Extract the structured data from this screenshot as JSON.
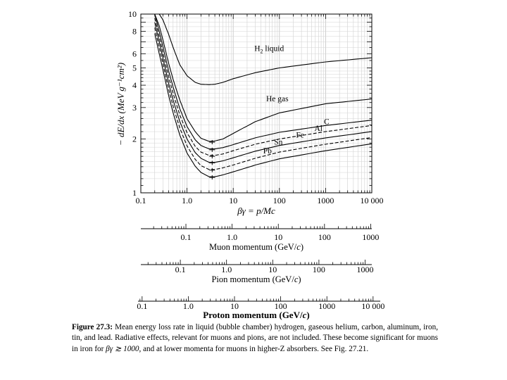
{
  "chart_data": {
    "type": "line",
    "title": "Mean energy loss rate",
    "xlabel": "βγ = p/Mc",
    "ylabel": "− dE/dx (MeV g⁻¹cm²)",
    "xscale": "log",
    "yscale": "log",
    "xlim": [
      0.1,
      10000
    ],
    "ylim": [
      1,
      10
    ],
    "grid": true,
    "xticks": [
      0.1,
      1.0,
      10,
      100,
      1000,
      10000
    ],
    "x_tick_labels": [
      "0.1",
      "1.0",
      "10",
      "100",
      "1000",
      "10 000"
    ],
    "y_tick_labels": [
      {
        "value": 1,
        "label": "1"
      },
      {
        "value": 2,
        "label": "2"
      },
      {
        "value": 3,
        "label": "3"
      },
      {
        "value": 4,
        "label": "4"
      },
      {
        "value": 5,
        "label": "5"
      },
      {
        "value": 6,
        "label": "6"
      },
      {
        "value": 8,
        "label": "8"
      },
      {
        "value": 10,
        "label": "10"
      }
    ],
    "series": [
      {
        "name": "H2 liquid",
        "label_main": "H",
        "label_sub": "2",
        "label_rest": " liquid",
        "label_at": {
          "x": 60,
          "y": 6.2
        },
        "dash": "solid",
        "x": [
          0.25,
          0.3,
          0.4,
          0.5,
          0.7,
          1.0,
          1.5,
          2,
          3,
          4,
          6,
          10,
          30,
          100,
          1000,
          10000
        ],
        "y": [
          10.0,
          9.3,
          7.7,
          6.5,
          5.2,
          4.52,
          4.15,
          4.05,
          4.03,
          4.05,
          4.15,
          4.35,
          4.7,
          5.0,
          5.4,
          5.7
        ]
      },
      {
        "name": "He gas",
        "label_at": {
          "x": 90,
          "y": 3.25
        },
        "dash": "solid",
        "x": [
          0.2,
          0.25,
          0.3,
          0.4,
          0.5,
          0.7,
          1.0,
          1.5,
          2,
          3,
          4,
          6,
          10,
          30,
          100,
          1000,
          10000
        ],
        "y": [
          10.0,
          8.6,
          7.2,
          5.3,
          4.3,
          3.3,
          2.6,
          2.2,
          2.02,
          1.94,
          1.95,
          2.0,
          2.15,
          2.5,
          2.8,
          3.15,
          3.35
        ]
      },
      {
        "name": "C",
        "label_at": {
          "x": 1050,
          "y": 2.42
        },
        "dash": "solid",
        "x": [
          0.2,
          0.25,
          0.3,
          0.4,
          0.5,
          0.7,
          1.0,
          1.5,
          2,
          3,
          4,
          6,
          10,
          30,
          100,
          1000,
          10000
        ],
        "y": [
          10.0,
          8.0,
          6.6,
          4.8,
          3.9,
          2.95,
          2.35,
          1.98,
          1.84,
          1.76,
          1.76,
          1.79,
          1.86,
          2.03,
          2.18,
          2.38,
          2.55
        ]
      },
      {
        "name": "Al",
        "label_at": {
          "x": 700,
          "y": 2.22
        },
        "dash": "dashed",
        "x": [
          0.2,
          0.25,
          0.3,
          0.4,
          0.5,
          0.7,
          1.0,
          1.5,
          2,
          3,
          4,
          6,
          10,
          30,
          100,
          1000,
          10000
        ],
        "y": [
          9.5,
          7.5,
          6.1,
          4.45,
          3.6,
          2.72,
          2.17,
          1.82,
          1.69,
          1.62,
          1.62,
          1.65,
          1.72,
          1.87,
          2.0,
          2.2,
          2.38
        ]
      },
      {
        "name": "Fe",
        "label_at": {
          "x": 280,
          "y": 2.04
        },
        "dash": "solid",
        "x": [
          0.2,
          0.25,
          0.3,
          0.4,
          0.5,
          0.7,
          1.0,
          1.5,
          2,
          3,
          4,
          6,
          10,
          30,
          100,
          1000,
          10000
        ],
        "y": [
          9.0,
          7.0,
          5.7,
          4.1,
          3.3,
          2.5,
          2.0,
          1.68,
          1.56,
          1.48,
          1.48,
          1.51,
          1.57,
          1.71,
          1.84,
          2.03,
          2.2
        ]
      },
      {
        "name": "Sn",
        "label_at": {
          "x": 95,
          "y": 1.86
        },
        "dash": "dashed",
        "x": [
          0.2,
          0.25,
          0.3,
          0.4,
          0.5,
          0.7,
          1.0,
          1.5,
          2,
          3,
          4,
          6,
          10,
          30,
          100,
          1000,
          10000
        ],
        "y": [
          8.4,
          6.5,
          5.3,
          3.8,
          3.05,
          2.3,
          1.83,
          1.54,
          1.42,
          1.35,
          1.35,
          1.38,
          1.43,
          1.56,
          1.69,
          1.87,
          2.04
        ]
      },
      {
        "name": "Pb",
        "label_at": {
          "x": 55,
          "y": 1.66
        },
        "dash": "solid",
        "x": [
          0.2,
          0.25,
          0.3,
          0.4,
          0.5,
          0.7,
          1.0,
          1.5,
          2,
          3,
          4,
          6,
          10,
          30,
          100,
          1000,
          10000
        ],
        "y": [
          7.8,
          6.0,
          4.9,
          3.5,
          2.8,
          2.1,
          1.67,
          1.41,
          1.3,
          1.23,
          1.23,
          1.26,
          1.31,
          1.43,
          1.55,
          1.72,
          1.88
        ]
      }
    ],
    "minima_markers": [
      {
        "x": 3.5,
        "y": 1.92
      },
      {
        "x": 3.5,
        "y": 1.74
      },
      {
        "x": 3.5,
        "y": 1.6
      },
      {
        "x": 3.5,
        "y": 1.47
      },
      {
        "x": 3.5,
        "y": 1.34
      },
      {
        "x": 3.5,
        "y": 1.22
      }
    ]
  },
  "secondary_axes": [
    {
      "name": "muon",
      "label_main": "Muon momentum (GeV/",
      "label_var": "c",
      "label_close": ")",
      "tick_labels": [
        {
          "value": 0.1,
          "label": "0.1"
        },
        {
          "value": 1.0,
          "label": "1.0"
        },
        {
          "value": 10,
          "label": "10"
        },
        {
          "value": 100,
          "label": "100"
        },
        {
          "value": 1000,
          "label": "1000"
        }
      ],
      "mass_gev": 0.1057,
      "bold_label": false
    },
    {
      "name": "pion",
      "label_main": "Pion momentum (GeV/",
      "label_var": "c",
      "label_close": ")",
      "tick_labels": [
        {
          "value": 0.1,
          "label": "0.1"
        },
        {
          "value": 1.0,
          "label": "1.0"
        },
        {
          "value": 10,
          "label": "10"
        },
        {
          "value": 100,
          "label": "100"
        },
        {
          "value": 1000,
          "label": "1000"
        }
      ],
      "mass_gev": 0.1396,
      "bold_label": false
    },
    {
      "name": "proton",
      "label_main": "Proton momentum (GeV/",
      "label_var": "c",
      "label_close": ")",
      "tick_labels": [
        {
          "value": 0.1,
          "label": "0.1"
        },
        {
          "value": 1.0,
          "label": "1.0"
        },
        {
          "value": 10,
          "label": "10"
        },
        {
          "value": 100,
          "label": "100"
        },
        {
          "value": 1000,
          "label": "1000"
        },
        {
          "value": 10000,
          "label": "10 000"
        }
      ],
      "mass_gev": 0.9383,
      "bold_label": true
    }
  ],
  "caption": {
    "label": "Figure 27.3:",
    "text_1": " Mean energy loss rate in liquid (bubble chamber) hydrogen, gaseous helium, carbon, aluminum, iron, tin, and lead. Radiative effects, relevant for muons and pions, are not included. These become significant for muons in iron for ",
    "math": "βγ ≳ 1000",
    "text_2": ", and at lower momenta for muons in higher-Z absorbers. See Fig. 27.21."
  }
}
